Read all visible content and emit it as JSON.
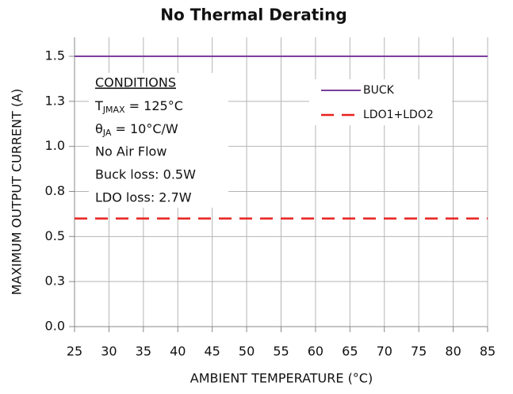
{
  "chart_data": {
    "type": "line",
    "title": "No Thermal Derating",
    "x_label": "AMBIENT TEMPERATURE (°C)",
    "y_label": "MAXIMUM OUTPUT  CURRENT (A)",
    "xlim": [
      25,
      85
    ],
    "xticks": [
      25,
      30,
      35,
      40,
      45,
      50,
      55,
      60,
      65,
      70,
      75,
      80,
      85
    ],
    "ylim": [
      0,
      1.5
    ],
    "yticks": [
      {
        "value": 0,
        "label": "0.0"
      },
      {
        "value": 0.25,
        "label": "0.3"
      },
      0.5,
      {
        "value": 0.75,
        "label": "0.8"
      },
      {
        "value": 1,
        "label": "1.0"
      },
      {
        "value": 1.25,
        "label": "1.3"
      },
      1.5
    ],
    "grid": true,
    "legend": "upper right",
    "series": [
      {
        "name": "BUCK",
        "color": "#7b3f9e",
        "dash": false,
        "x": [
          25,
          85
        ],
        "values": [
          1.5,
          1.5
        ]
      },
      {
        "name": "LDO1+LDO2",
        "color": "#e8211e",
        "dash": true,
        "x": [
          25,
          85
        ],
        "values": [
          0.6,
          0.6
        ]
      }
    ],
    "conditions": {
      "heading": "CONDITIONS",
      "lines": [
        {
          "base": "T",
          "sub": "JMAX",
          "rest": " = 125°C"
        },
        {
          "base": "θ",
          "sub": "JA",
          "rest": " = 10°C/W"
        },
        "No Air Flow",
        "Buck loss: 0.5W",
        "LDO loss: 2.7W"
      ]
    }
  }
}
